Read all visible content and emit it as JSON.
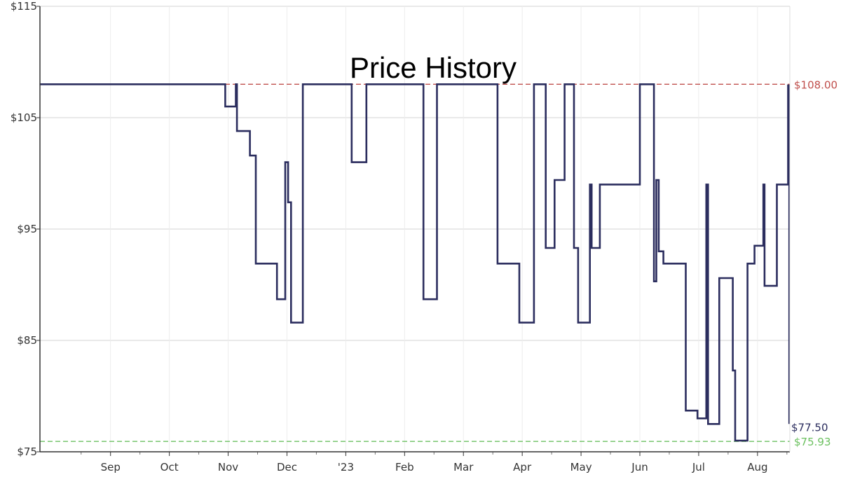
{
  "chart_data": {
    "type": "line",
    "title": "Price History",
    "xlabel": "",
    "ylabel": "",
    "ylim": [
      75,
      115
    ],
    "xlim": [
      -1.2,
      11.55
    ],
    "y_ticks": [
      {
        "value": 75,
        "label": "$75"
      },
      {
        "value": 85,
        "label": "$85"
      },
      {
        "value": 95,
        "label": "$95"
      },
      {
        "value": 105,
        "label": "$105"
      },
      {
        "value": 115,
        "label": "$115"
      }
    ],
    "x_ticks": [
      {
        "value": 0,
        "label": "Sep"
      },
      {
        "value": 1,
        "label": "Oct"
      },
      {
        "value": 2,
        "label": "Nov"
      },
      {
        "value": 3,
        "label": "Dec"
      },
      {
        "value": 4,
        "label": "'23"
      },
      {
        "value": 5,
        "label": "Feb"
      },
      {
        "value": 6,
        "label": "Mar"
      },
      {
        "value": 7,
        "label": "Apr"
      },
      {
        "value": 8,
        "label": "May"
      },
      {
        "value": 9,
        "label": "Jun"
      },
      {
        "value": 10,
        "label": "Jul"
      },
      {
        "value": 11,
        "label": "Aug"
      }
    ],
    "x_unit": "months since Sep (tick = start of month label)",
    "grid": true,
    "series": [
      {
        "name": "Price",
        "color": "#2b2d5e",
        "step": true,
        "points": [
          [
            -1.2,
            108
          ],
          [
            1.95,
            106
          ],
          [
            2.13,
            108
          ],
          [
            2.15,
            103.8
          ],
          [
            2.37,
            101.6
          ],
          [
            2.47,
            91.9
          ],
          [
            2.83,
            88.7
          ],
          [
            2.97,
            101
          ],
          [
            3.02,
            97.4
          ],
          [
            3.07,
            86.6
          ],
          [
            3.27,
            108
          ],
          [
            4.1,
            101
          ],
          [
            4.35,
            108
          ],
          [
            5.32,
            88.7
          ],
          [
            5.55,
            108
          ],
          [
            6.58,
            91.9
          ],
          [
            6.95,
            86.6
          ],
          [
            7.2,
            108
          ],
          [
            7.4,
            93.3
          ],
          [
            7.55,
            99.4
          ],
          [
            7.72,
            108
          ],
          [
            7.88,
            93.3
          ],
          [
            7.95,
            86.6
          ],
          [
            8.15,
            99
          ],
          [
            8.18,
            93.3
          ],
          [
            8.32,
            99
          ],
          [
            9.0,
            108
          ],
          [
            9.24,
            90.3
          ],
          [
            9.28,
            99.4
          ],
          [
            9.32,
            93
          ],
          [
            9.4,
            91.9
          ],
          [
            9.78,
            78.7
          ],
          [
            9.98,
            78
          ],
          [
            10.13,
            99
          ],
          [
            10.16,
            77.5
          ],
          [
            10.35,
            90.6
          ],
          [
            10.58,
            82.3
          ],
          [
            10.62,
            76
          ],
          [
            10.83,
            91.9
          ],
          [
            10.95,
            93.5
          ],
          [
            11.1,
            99
          ],
          [
            11.12,
            89.9
          ],
          [
            11.33,
            99
          ],
          [
            11.52,
            107.9
          ],
          [
            11.54,
            77.5
          ]
        ],
        "end_label": "$77.50"
      }
    ],
    "reference_lines": [
      {
        "name": "highest",
        "value": 108.0,
        "label": "$108.00",
        "color": "#c0504d",
        "style": "dashed"
      },
      {
        "name": "lowest",
        "value": 75.93,
        "label": "$75.93",
        "color": "#6cc160",
        "style": "dashed"
      }
    ]
  }
}
